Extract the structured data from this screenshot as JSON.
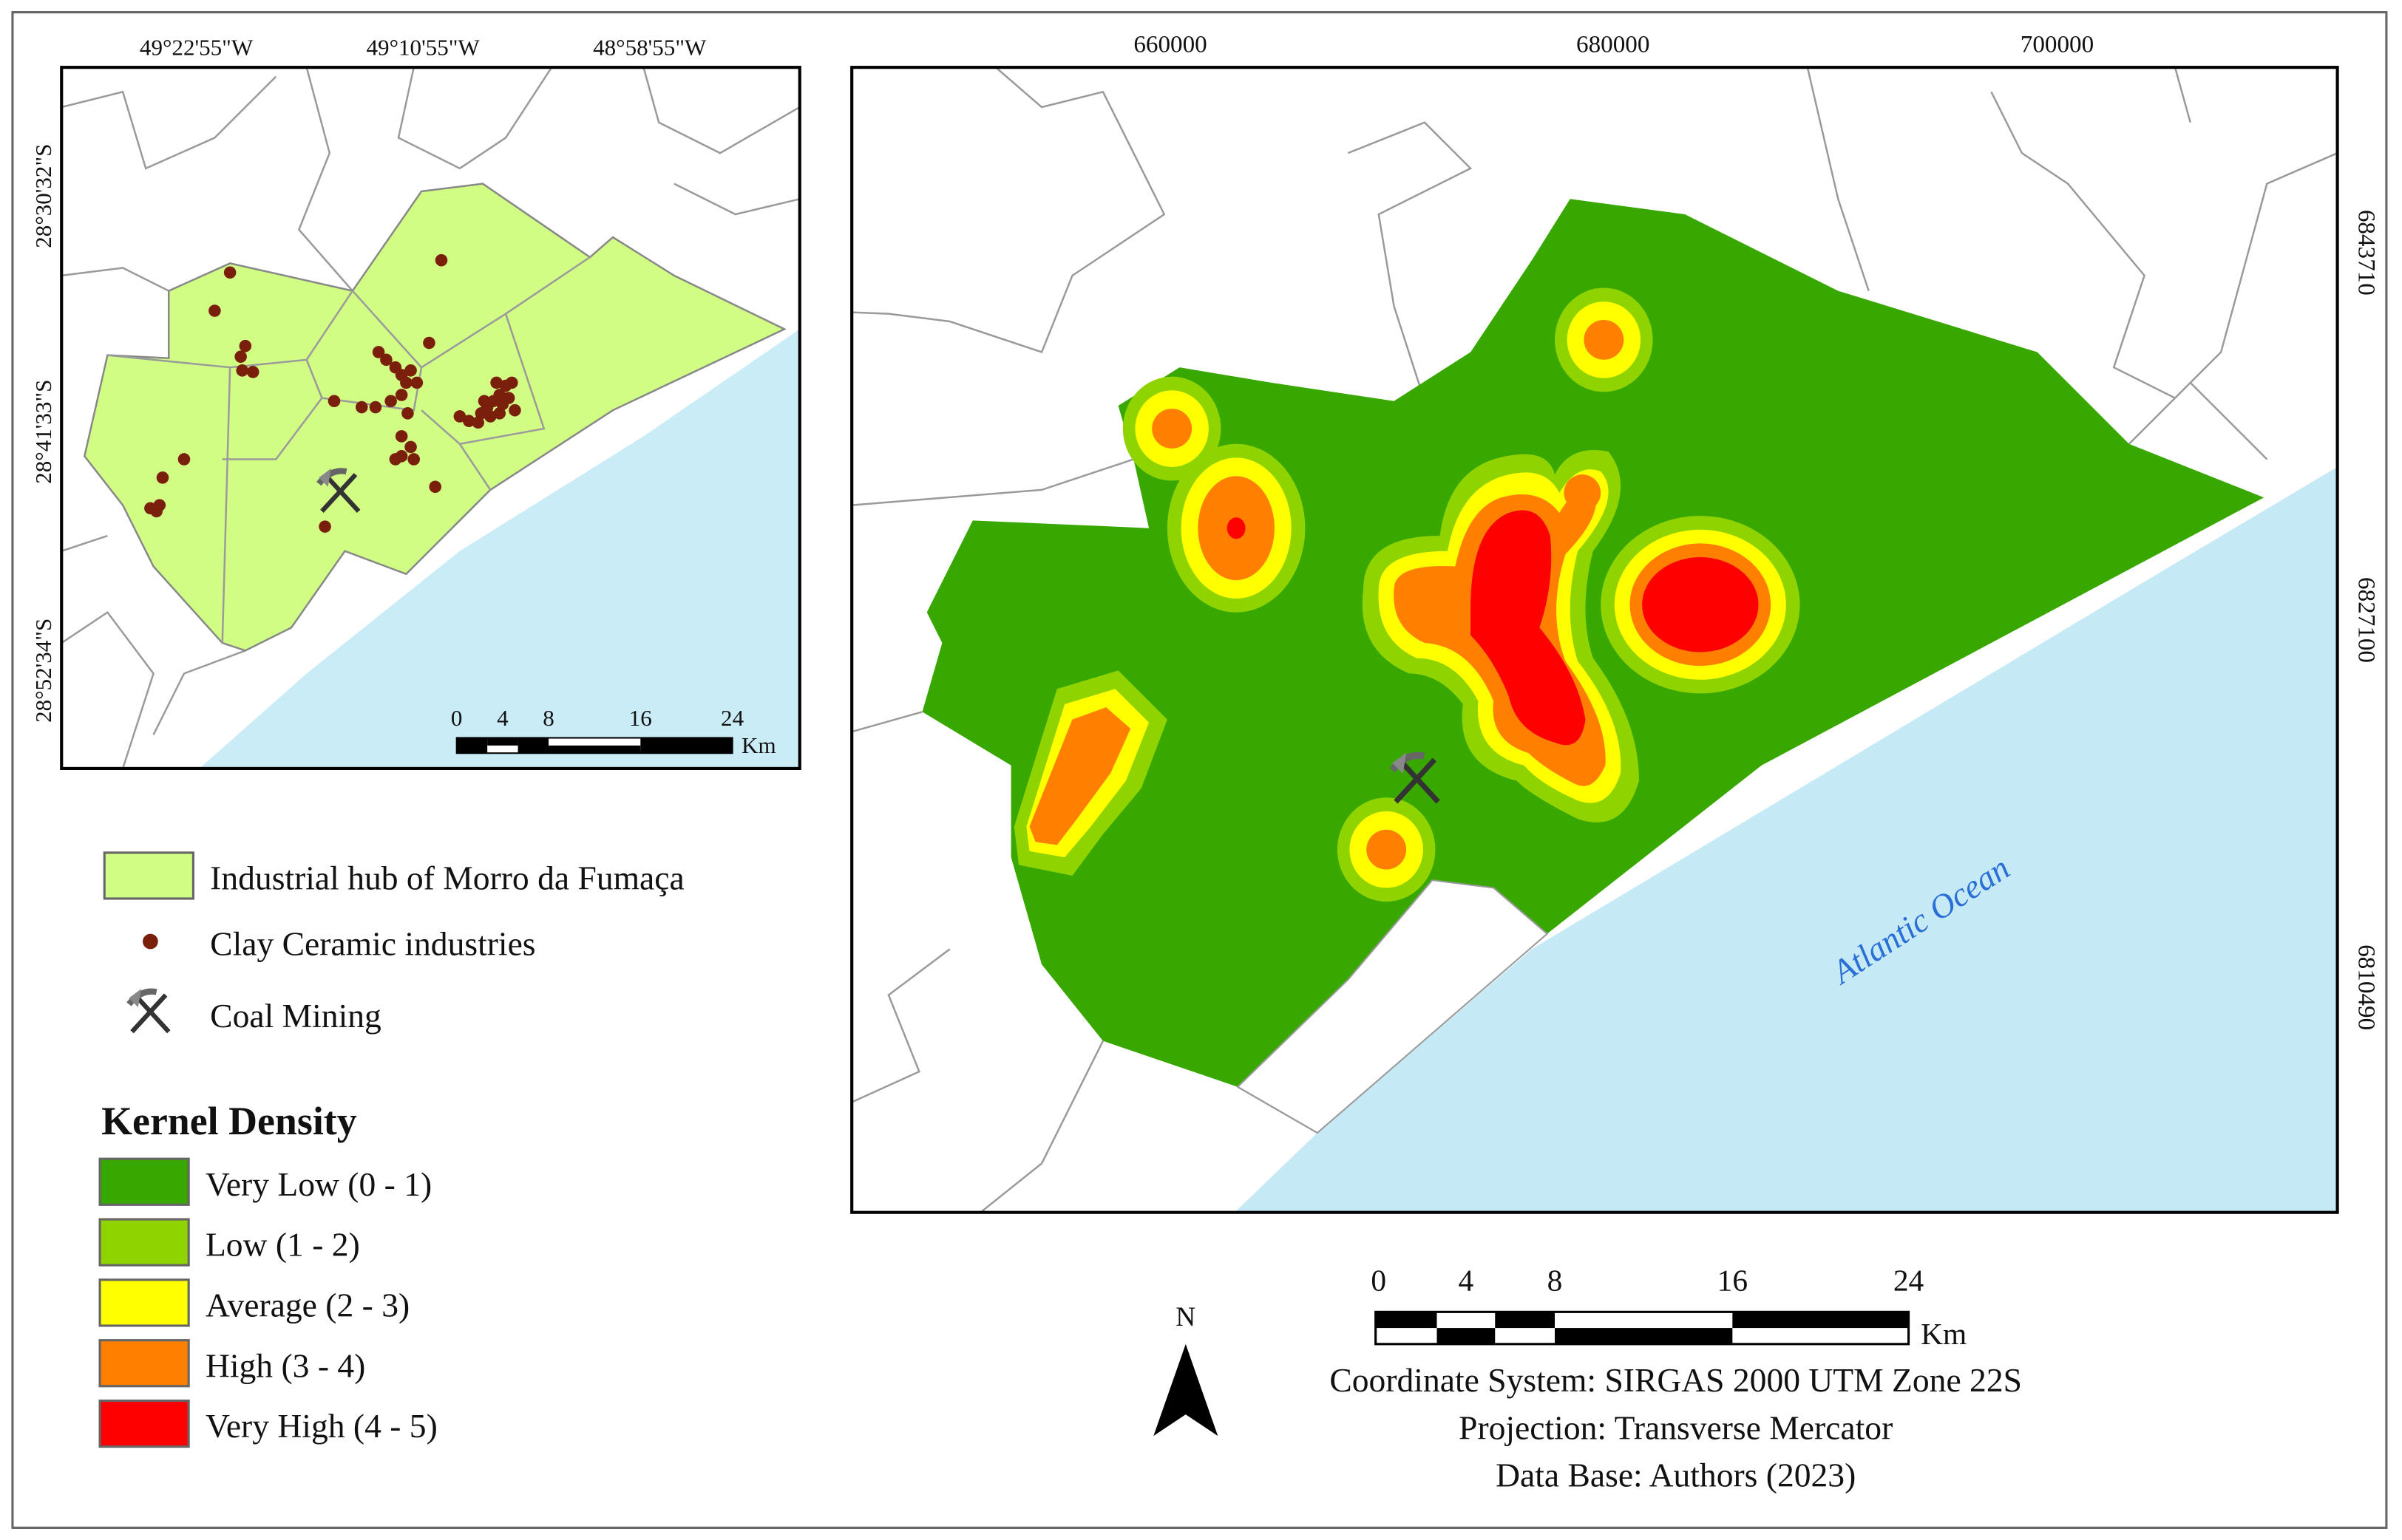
{
  "inset_map": {
    "top_labels": [
      "49°22'55\"W",
      "49°10'55\"W",
      "48°58'55\"W"
    ],
    "left_labels": [
      "28°30'32\"S",
      "28°41'33\"S",
      "28°52'34\"S"
    ],
    "scale_bar": {
      "ticks": [
        "0",
        "4",
        "8",
        "16",
        "24"
      ],
      "unit": "Km"
    }
  },
  "main_map": {
    "top_labels": [
      "660000",
      "680000",
      "700000"
    ],
    "right_labels": [
      "6843710",
      "6827100",
      "6810490"
    ],
    "ocean_label": "Atlantic Ocean"
  },
  "legend": {
    "items": [
      {
        "label": "Industrial hub of Morro da Fumaça",
        "color": "#d1fd85"
      },
      {
        "label": "Clay Ceramic industries",
        "color": "#7a1f0b"
      },
      {
        "label": "Coal Mining"
      }
    ],
    "kernel_title": "Kernel Density",
    "classes": [
      {
        "label": "Very Low (0 - 1)",
        "color": "#38a800"
      },
      {
        "label": "Low (1 - 2)",
        "color": "#8fd400"
      },
      {
        "label": "Average (2 - 3)",
        "color": "#ffff00"
      },
      {
        "label": "High (3 - 4)",
        "color": "#ff8000"
      },
      {
        "label": "Very High (4 - 5)",
        "color": "#ff0000"
      }
    ]
  },
  "scale_bar": {
    "ticks": [
      "0",
      "4",
      "8",
      "16",
      "24"
    ],
    "unit": "Km"
  },
  "north_label": "N",
  "info": [
    "Coordinate System: SIRGAS 2000 UTM Zone 22S",
    "Projection: Transverse Mercator",
    "Data Base: Authors (2023)"
  ]
}
